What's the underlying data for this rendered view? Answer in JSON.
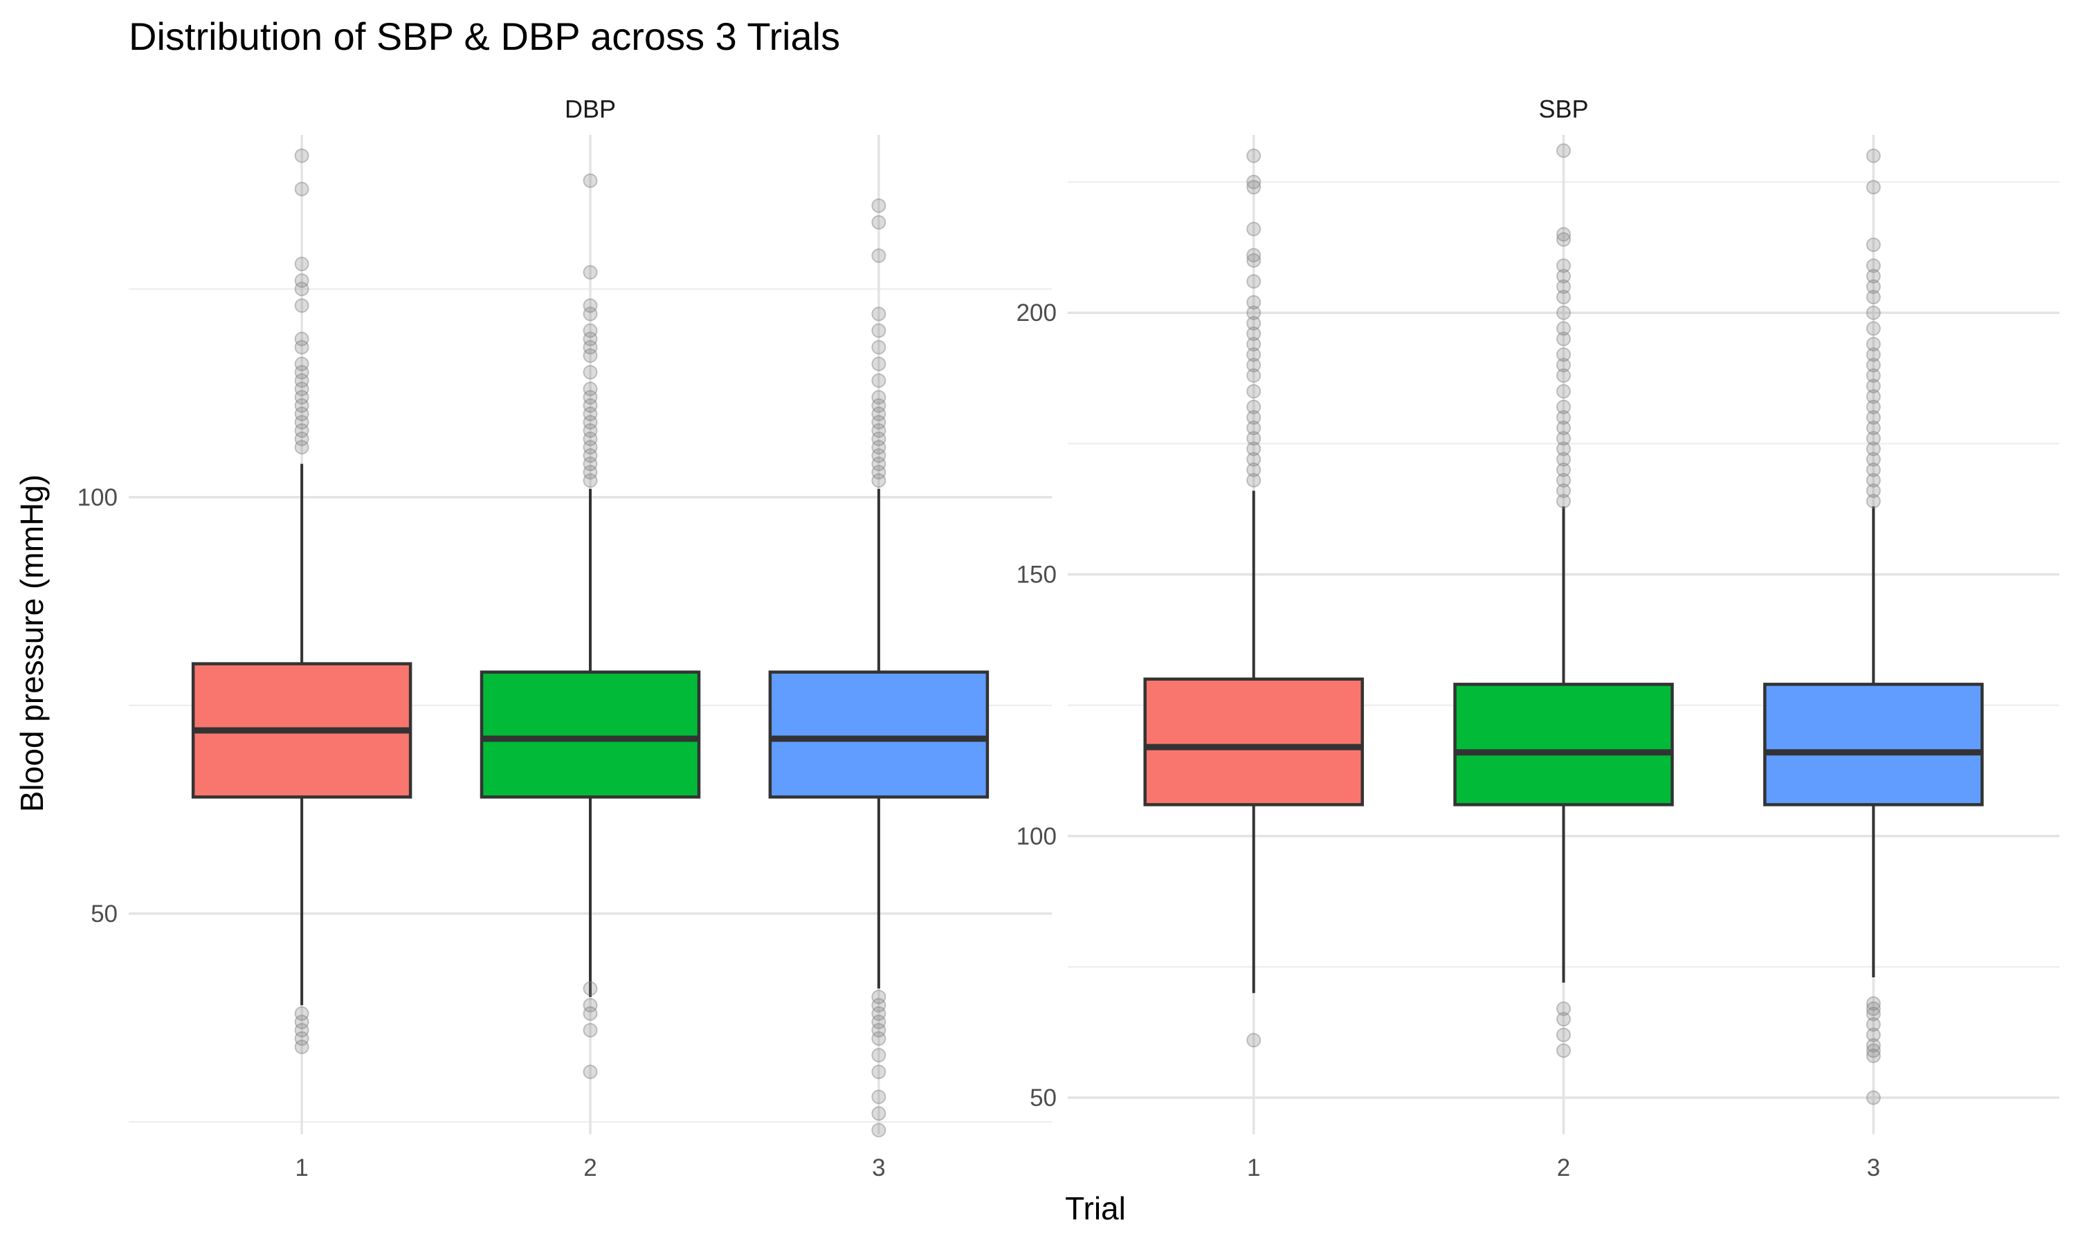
{
  "chart_data": {
    "type": "boxplot",
    "title": "Distribution of SBP & DBP across 3 Trials",
    "xlabel": "Trial",
    "ylabel": "Blood pressure (mmHg)",
    "categories": [
      "1",
      "2",
      "3"
    ],
    "colors": {
      "1": "#F8766D",
      "2": "#00BA38",
      "3": "#619CFF"
    },
    "outlier_color": "#808080",
    "grid": true,
    "legend": "none",
    "panels": [
      {
        "name": "DBP",
        "ylim": [
          23.5,
          143.5
        ],
        "yticks": [
          50,
          100
        ],
        "minor_yticks": [
          25,
          75,
          125
        ],
        "boxes": [
          {
            "trial": "1",
            "whisker_low": 39,
            "q1": 64,
            "median": 72,
            "q3": 80,
            "whisker_high": 104,
            "outliers": [
              38,
              37,
              36,
              35,
              34,
              106,
              107,
              108,
              109,
              110,
              111,
              112,
              113,
              114,
              115,
              116,
              118,
              119,
              123,
              125,
              126,
              128,
              137,
              141
            ]
          },
          {
            "trial": "2",
            "whisker_low": 40,
            "q1": 64,
            "median": 71,
            "q3": 79,
            "whisker_high": 101,
            "outliers": [
              41,
              39,
              38,
              36,
              31,
              102,
              103,
              104,
              105,
              106,
              107,
              108,
              109,
              110,
              111,
              112,
              113,
              115,
              117,
              118,
              119,
              120,
              122,
              123,
              127,
              138
            ]
          },
          {
            "trial": "3",
            "whisker_low": 41,
            "q1": 64,
            "median": 71,
            "q3": 79,
            "whisker_high": 101,
            "outliers": [
              40,
              39,
              38,
              37,
              36,
              35,
              33,
              31,
              28,
              26,
              24,
              102,
              103,
              104,
              105,
              106,
              107,
              108,
              109,
              110,
              111,
              112,
              114,
              116,
              118,
              120,
              122,
              129,
              133,
              135
            ]
          }
        ]
      },
      {
        "name": "SBP",
        "ylim": [
          43,
          234
        ],
        "yticks": [
          50,
          100,
          150,
          200
        ],
        "minor_yticks": [
          75,
          125,
          175,
          225
        ],
        "boxes": [
          {
            "trial": "1",
            "whisker_low": 70,
            "q1": 106,
            "median": 117,
            "q3": 130,
            "whisker_high": 166,
            "outliers": [
              61,
              168,
              170,
              172,
              174,
              176,
              178,
              180,
              182,
              185,
              188,
              190,
              192,
              194,
              196,
              198,
              200,
              202,
              206,
              210,
              211,
              216,
              224,
              225,
              230
            ]
          },
          {
            "trial": "2",
            "whisker_low": 72,
            "q1": 106,
            "median": 116,
            "q3": 129,
            "whisker_high": 163,
            "outliers": [
              67,
              65,
              62,
              59,
              164,
              166,
              168,
              170,
              172,
              174,
              176,
              178,
              180,
              182,
              185,
              188,
              190,
              192,
              195,
              197,
              200,
              203,
              205,
              207,
              209,
              214,
              215,
              231
            ]
          },
          {
            "trial": "3",
            "whisker_low": 73,
            "q1": 106,
            "median": 116,
            "q3": 129,
            "whisker_high": 163,
            "outliers": [
              68,
              67,
              66,
              64,
              62,
              60,
              59,
              58,
              50,
              164,
              166,
              168,
              170,
              172,
              174,
              176,
              178,
              180,
              182,
              184,
              186,
              188,
              190,
              192,
              194,
              197,
              200,
              203,
              205,
              207,
              209,
              213,
              224,
              230
            ]
          }
        ]
      }
    ]
  }
}
